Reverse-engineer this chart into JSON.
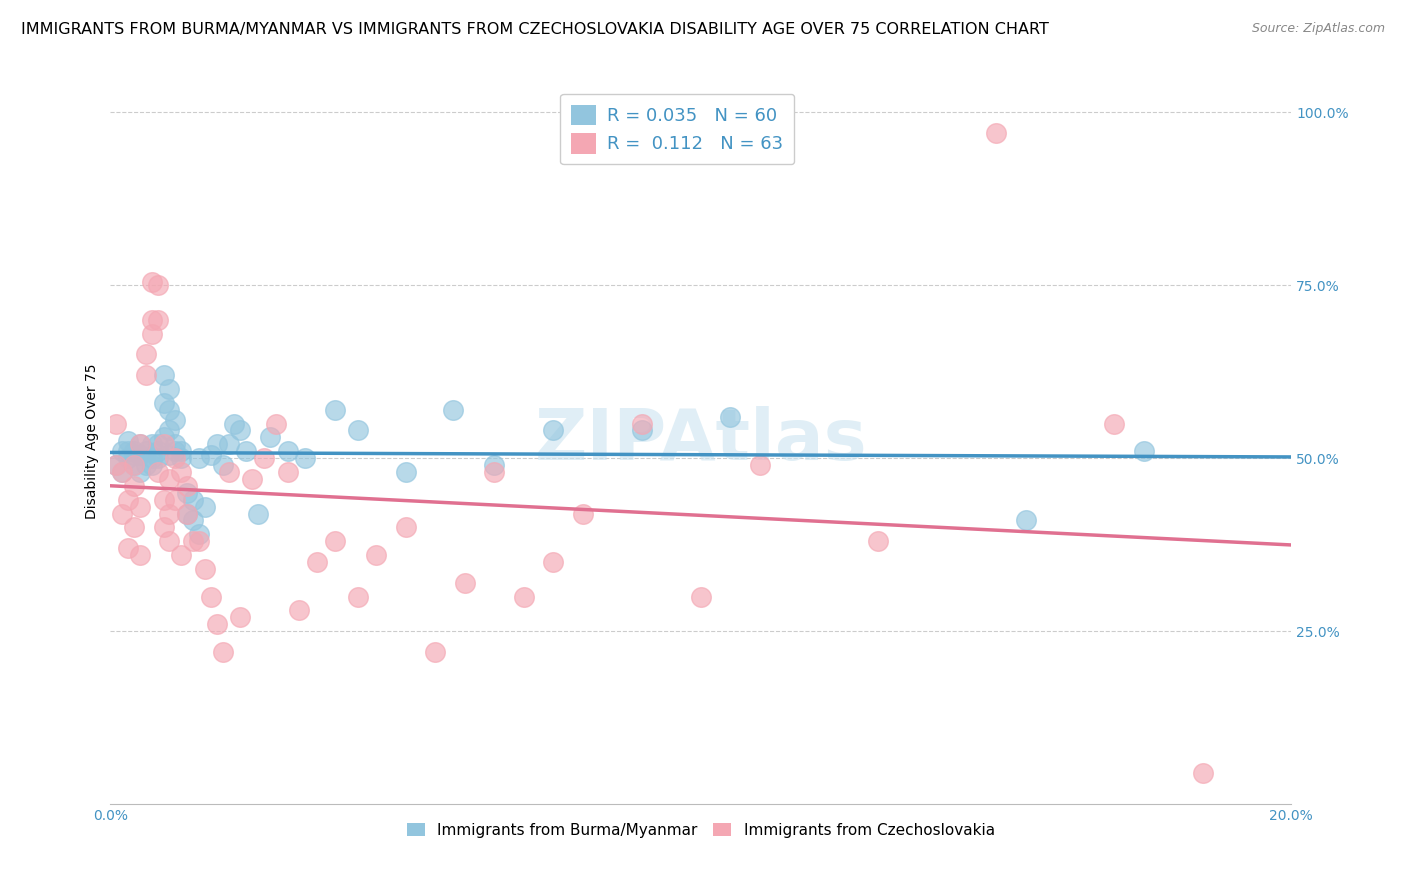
{
  "title": "IMMIGRANTS FROM BURMA/MYANMAR VS IMMIGRANTS FROM CZECHOSLOVAKIA DISABILITY AGE OVER 75 CORRELATION CHART",
  "source": "Source: ZipAtlas.com",
  "ylabel": "Disability Age Over 75",
  "xlim": [
    0.0,
    0.2
  ],
  "ylim": [
    0.0,
    1.05
  ],
  "yticks": [
    0.25,
    0.5,
    0.75,
    1.0
  ],
  "ytick_labels": [
    "25.0%",
    "50.0%",
    "75.0%",
    "100.0%"
  ],
  "xticks": [
    0.0,
    0.02,
    0.04,
    0.06,
    0.08,
    0.1,
    0.12,
    0.14,
    0.16,
    0.18,
    0.2
  ],
  "xtick_labels": [
    "0.0%",
    "",
    "",
    "",
    "",
    "",
    "",
    "",
    "",
    "",
    "20.0%"
  ],
  "blue_R": "0.035",
  "blue_N": "60",
  "pink_R": "0.112",
  "pink_N": "63",
  "blue_color": "#92c5de",
  "pink_color": "#f4a7b3",
  "blue_line_color": "#4393c3",
  "pink_line_color": "#e07090",
  "tick_color": "#4393c3",
  "watermark": "ZIPAtlas",
  "legend_label_blue": "Immigrants from Burma/Myanmar",
  "legend_label_pink": "Immigrants from Czechoslovakia",
  "blue_scatter_x": [
    0.001,
    0.002,
    0.002,
    0.003,
    0.003,
    0.003,
    0.004,
    0.004,
    0.004,
    0.005,
    0.005,
    0.005,
    0.006,
    0.006,
    0.007,
    0.007,
    0.007,
    0.008,
    0.008,
    0.008,
    0.009,
    0.009,
    0.009,
    0.01,
    0.01,
    0.01,
    0.01,
    0.011,
    0.011,
    0.011,
    0.012,
    0.012,
    0.013,
    0.013,
    0.014,
    0.014,
    0.015,
    0.015,
    0.016,
    0.017,
    0.018,
    0.019,
    0.02,
    0.021,
    0.022,
    0.023,
    0.025,
    0.027,
    0.03,
    0.033,
    0.038,
    0.042,
    0.05,
    0.058,
    0.065,
    0.075,
    0.09,
    0.105,
    0.155,
    0.175
  ],
  "blue_scatter_y": [
    0.49,
    0.51,
    0.48,
    0.51,
    0.5,
    0.525,
    0.49,
    0.505,
    0.51,
    0.48,
    0.505,
    0.52,
    0.49,
    0.51,
    0.5,
    0.52,
    0.49,
    0.51,
    0.5,
    0.52,
    0.62,
    0.58,
    0.53,
    0.505,
    0.54,
    0.57,
    0.6,
    0.555,
    0.52,
    0.51,
    0.51,
    0.5,
    0.45,
    0.42,
    0.41,
    0.44,
    0.5,
    0.39,
    0.43,
    0.505,
    0.52,
    0.49,
    0.52,
    0.55,
    0.54,
    0.51,
    0.42,
    0.53,
    0.51,
    0.5,
    0.57,
    0.54,
    0.48,
    0.57,
    0.49,
    0.54,
    0.54,
    0.56,
    0.41,
    0.51
  ],
  "pink_scatter_x": [
    0.001,
    0.001,
    0.002,
    0.002,
    0.003,
    0.003,
    0.004,
    0.004,
    0.004,
    0.005,
    0.005,
    0.005,
    0.006,
    0.006,
    0.007,
    0.007,
    0.007,
    0.008,
    0.008,
    0.008,
    0.009,
    0.009,
    0.009,
    0.01,
    0.01,
    0.01,
    0.011,
    0.011,
    0.012,
    0.012,
    0.013,
    0.013,
    0.014,
    0.015,
    0.016,
    0.017,
    0.018,
    0.019,
    0.02,
    0.022,
    0.024,
    0.026,
    0.028,
    0.03,
    0.032,
    0.035,
    0.038,
    0.042,
    0.045,
    0.05,
    0.055,
    0.06,
    0.065,
    0.07,
    0.075,
    0.08,
    0.09,
    0.1,
    0.11,
    0.13,
    0.15,
    0.17,
    0.185
  ],
  "pink_scatter_y": [
    0.49,
    0.55,
    0.42,
    0.48,
    0.37,
    0.44,
    0.4,
    0.46,
    0.49,
    0.36,
    0.43,
    0.52,
    0.65,
    0.62,
    0.68,
    0.7,
    0.755,
    0.7,
    0.75,
    0.48,
    0.52,
    0.44,
    0.4,
    0.47,
    0.42,
    0.38,
    0.5,
    0.44,
    0.48,
    0.36,
    0.46,
    0.42,
    0.38,
    0.38,
    0.34,
    0.3,
    0.26,
    0.22,
    0.48,
    0.27,
    0.47,
    0.5,
    0.55,
    0.48,
    0.28,
    0.35,
    0.38,
    0.3,
    0.36,
    0.4,
    0.22,
    0.32,
    0.48,
    0.3,
    0.35,
    0.42,
    0.55,
    0.3,
    0.49,
    0.38,
    0.97,
    0.55,
    0.045
  ],
  "background_color": "#ffffff",
  "grid_color": "#cccccc",
  "title_fontsize": 11.5,
  "axis_label_fontsize": 10,
  "tick_fontsize": 10,
  "legend_fontsize": 13
}
